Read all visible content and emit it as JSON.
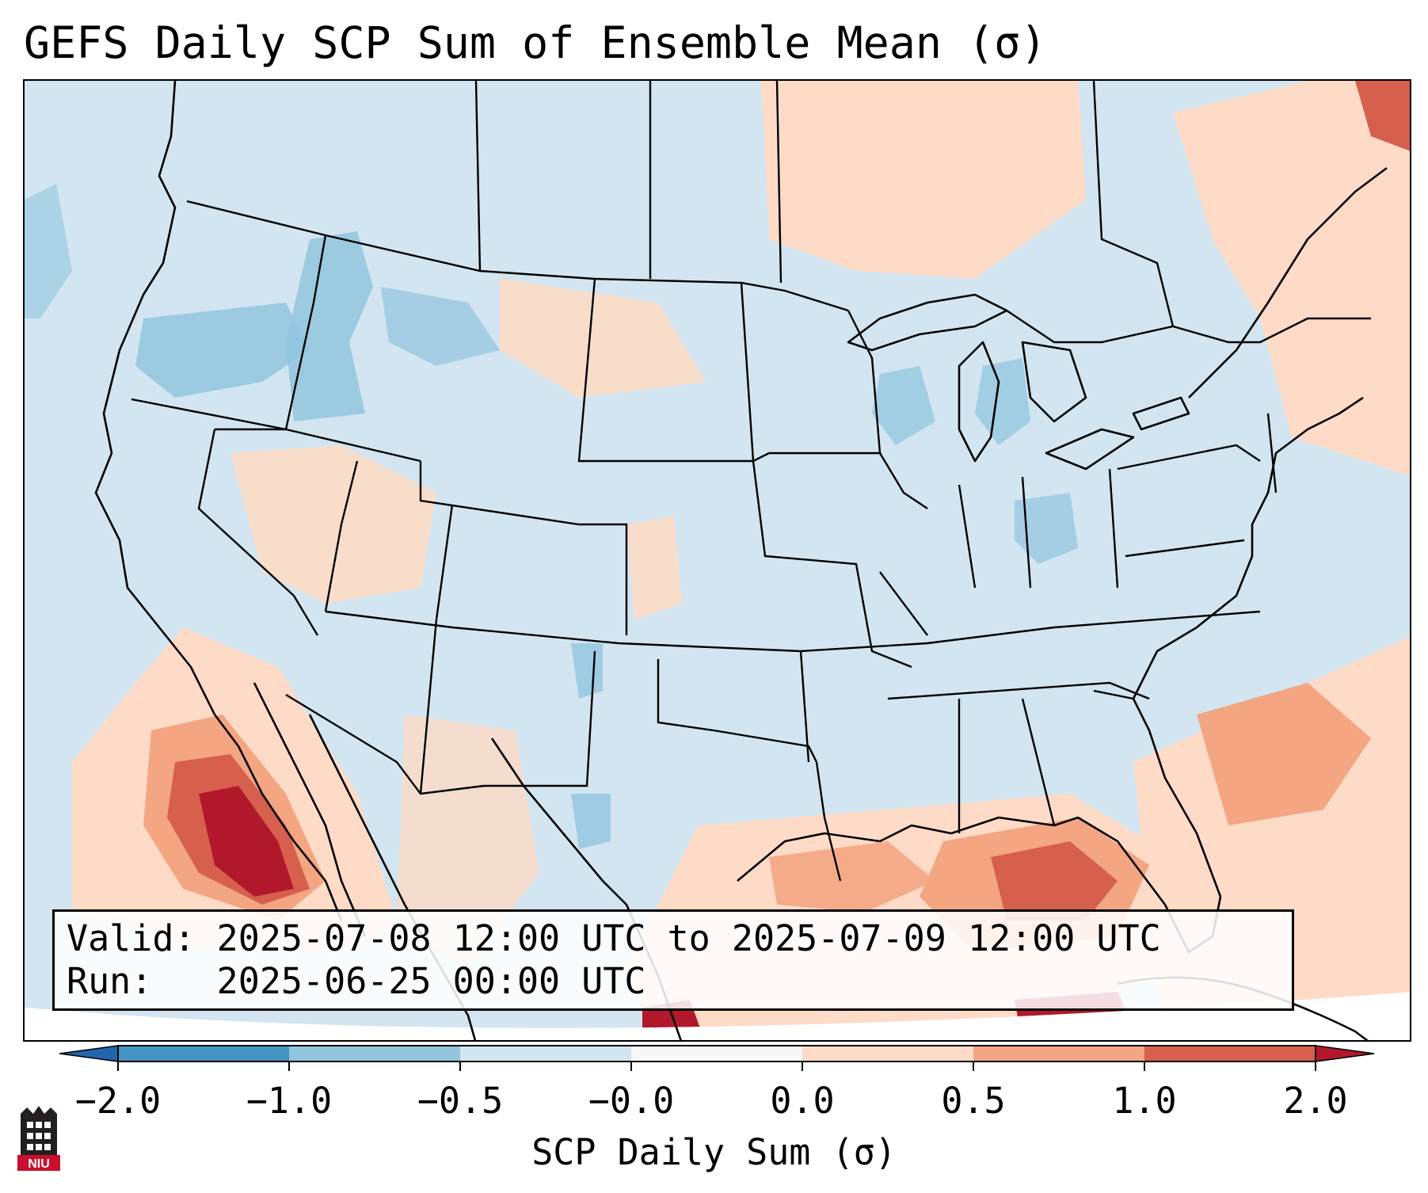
{
  "title": "GEFS Daily SCP Sum of Ensemble Mean (σ)",
  "map": {
    "region": "Continental United States",
    "colors": {
      "ocean_background": "#d2e5f1",
      "land_base": "#d2e5f1",
      "outline": "#000000"
    }
  },
  "info_box": {
    "valid_line": "Valid: 2025-07-08 12:00 UTC to 2025-07-09 12:00 UTC",
    "run_line": "Run:   2025-06-25 00:00 UTC"
  },
  "colorbar": {
    "label": "SCP Daily Sum (σ)",
    "ticks": [
      "−2.0",
      "−1.0",
      "−0.5",
      "−0.0",
      "0.0",
      "0.5",
      "1.0",
      "2.0"
    ],
    "bins": [
      {
        "from": -2.0,
        "to": -1.0,
        "color": "#4393c3"
      },
      {
        "from": -1.0,
        "to": -0.5,
        "color": "#92c5de"
      },
      {
        "from": -0.5,
        "to": -0.0,
        "color": "#d1e5f0"
      },
      {
        "from": -0.0,
        "to": 0.0,
        "color": "#f7f7f7"
      },
      {
        "from": 0.0,
        "to": 0.5,
        "color": "#fddbc7"
      },
      {
        "from": 0.5,
        "to": 1.0,
        "color": "#f4a582"
      },
      {
        "from": 1.0,
        "to": 2.0,
        "color": "#d6604d"
      }
    ],
    "under_color": "#2166ac",
    "over_color": "#b2182b"
  },
  "logo": {
    "text": "NIU",
    "colors": {
      "body": "#231f20",
      "banner": "#c8102e"
    }
  }
}
